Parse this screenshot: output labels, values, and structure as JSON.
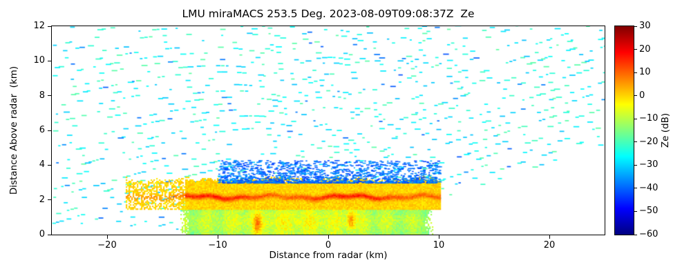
{
  "chart_data": {
    "type": "heatmap",
    "title": "LMU miraMACS 253.5 Deg. 2023-08-09T09:08:37Z  Ze",
    "xlabel": "Distance from radar (km)",
    "ylabel": "Distance Above radar  (km)",
    "xlim": [
      -25,
      25
    ],
    "ylim": [
      0,
      12
    ],
    "x_ticks": [
      -20,
      -10,
      0,
      10,
      20
    ],
    "y_ticks": [
      0,
      2,
      4,
      6,
      8,
      10,
      12
    ],
    "grid": false,
    "colorbar": {
      "label": "Ze (dB)",
      "min": -60,
      "max": 30,
      "ticks": [
        30,
        20,
        10,
        0,
        -10,
        -20,
        -30,
        -40,
        -50,
        -60
      ],
      "colormap": "jet",
      "stops": [
        {
          "t": 0.0,
          "color": "#000080"
        },
        {
          "t": 0.125,
          "color": "#0000ff"
        },
        {
          "t": 0.375,
          "color": "#00ffff"
        },
        {
          "t": 0.625,
          "color": "#ffff00"
        },
        {
          "t": 0.875,
          "color": "#ff0000"
        },
        {
          "t": 1.0,
          "color": "#800000"
        }
      ]
    },
    "scene": {
      "description": "RHI vertical scan at azimuth 253.5 deg: speckled clear-air/noise fan (about -32 to -18 dB, turquoise) covering elevations ~12 to 179 deg out to ~28 km range; stratiform precipitation between -13.5 and +9.5 km ground distance reaching the surface; melting-layer bright band (up to ~16 dB, orange-red) at ~2.2 km altitude extending from -18 to +10 km; weak blue cloud-top echo (-44 to -34 dB) up to ~4.3 km; echo-free wedge at low elevation on the right side.",
      "noise": {
        "ze_range_db": [
          -32,
          -18
        ],
        "elev_deg": [
          12,
          179
        ],
        "max_range_km": 28,
        "blue_fraction": 0.06
      },
      "bright_band": {
        "height_km": 2.2,
        "x_range_km": [
          -18.3,
          10.1
        ],
        "peak_ze_db": 16,
        "patchy_left_of_km": -13
      },
      "precipitation": {
        "x_range_km": [
          -13.5,
          9.5
        ],
        "top_km": 1.8,
        "mean_ze_db": -16,
        "hot_spots": [
          {
            "x": -6.5,
            "y": 0.6
          },
          {
            "x": 2.0,
            "y": 0.9
          }
        ]
      },
      "cloud_top_blue": {
        "x_range_km": [
          -10,
          10
        ],
        "y_range_km": [
          3.0,
          4.3
        ],
        "ze_db": [
          -44,
          -34
        ]
      }
    }
  }
}
